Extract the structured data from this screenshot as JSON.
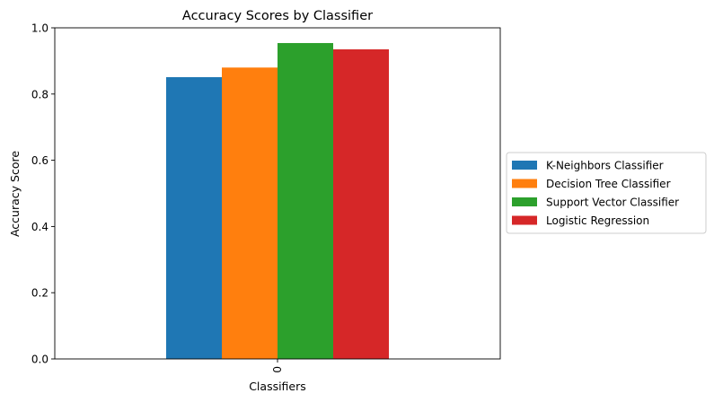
{
  "chart_data": {
    "type": "bar",
    "title": "Accuracy Scores by Classifier",
    "xlabel": "Classifiers",
    "ylabel": "Accuracy Score",
    "categories": [
      "0"
    ],
    "ylim": [
      0,
      1
    ],
    "yticks": [
      "0.0",
      "0.2",
      "0.4",
      "0.6",
      "0.8",
      "1.0"
    ],
    "grid": false,
    "legend_position": "center-right outside",
    "series": [
      {
        "name": "K-Neighbors Classifier",
        "values": [
          0.851
        ],
        "color": "#1f77b4"
      },
      {
        "name": "Decision Tree Classifier",
        "values": [
          0.88
        ],
        "color": "#ff7f0e"
      },
      {
        "name": "Support Vector Classifier",
        "values": [
          0.954
        ],
        "color": "#2ca02c"
      },
      {
        "name": "Logistic Regression",
        "values": [
          0.935
        ],
        "color": "#d62728"
      }
    ]
  }
}
